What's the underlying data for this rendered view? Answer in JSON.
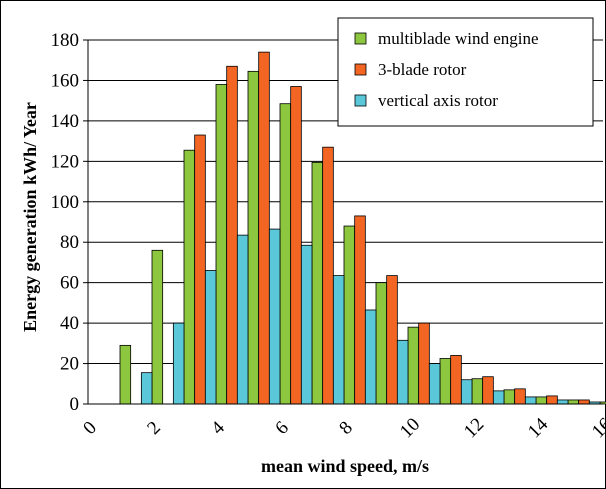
{
  "chart_data": {
    "type": "bar",
    "xlabel": "mean wind speed, m/s",
    "ylabel": "Energy generation kWh/ Year",
    "ylim": [
      0,
      180
    ],
    "yticks": [
      0,
      20,
      40,
      60,
      80,
      100,
      120,
      140,
      160,
      180
    ],
    "xticks": [
      "0",
      "2",
      "4",
      "6",
      "8",
      "10",
      "12",
      "14",
      "16"
    ],
    "grid": "horizontal",
    "legend_position": "top-right",
    "categories": [
      "1",
      "2",
      "3",
      "4",
      "5",
      "6",
      "7",
      "8",
      "9",
      "10",
      "11",
      "12",
      "13",
      "14",
      "15",
      "16",
      "17"
    ],
    "series": [
      {
        "name": "multiblade wind engine",
        "color": "#8dc63f",
        "values": [
          0,
          29,
          76,
          125.5,
          158,
          164.5,
          148.5,
          119.5,
          88,
          60,
          38,
          22.5,
          12.5,
          7,
          3.5,
          2,
          1
        ]
      },
      {
        "name": "3-blade rotor",
        "color": "#f26522",
        "values": [
          0,
          0,
          0,
          133,
          167,
          174,
          157,
          127,
          93,
          63.5,
          40,
          24,
          13.5,
          7.5,
          4,
          2,
          1
        ]
      },
      {
        "name": "vertical axis rotor",
        "color": "#5bc8d9",
        "values": [
          0,
          15.5,
          40,
          66,
          83.5,
          86.5,
          78.5,
          63.5,
          46.5,
          31.5,
          20,
          12,
          6.5,
          3.5,
          2,
          1,
          0.5
        ]
      }
    ]
  }
}
